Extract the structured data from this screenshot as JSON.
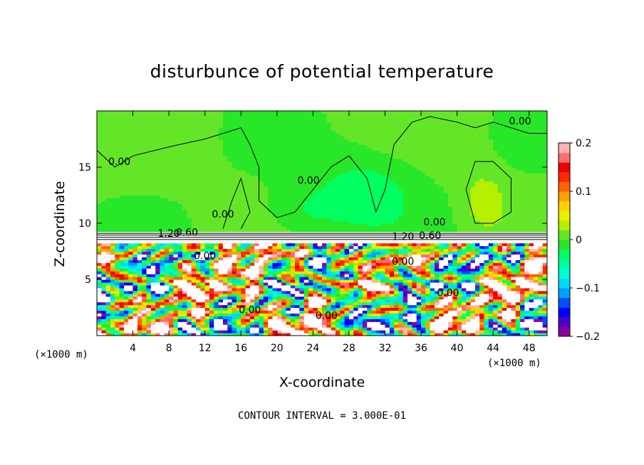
{
  "chart_data": {
    "type": "heatmap",
    "title": "disturbunce of potential temperature",
    "xlabel": "X-coordinate",
    "ylabel": "Z-coordinate",
    "x_unit": "(×1000 m)",
    "footer": "CONTOUR INTERVAL = 3.000E-01",
    "xlim": [
      0,
      50
    ],
    "ylim": [
      0,
      20
    ],
    "x_ticks": [
      4,
      8,
      12,
      16,
      20,
      24,
      28,
      32,
      36,
      40,
      44,
      48
    ],
    "y_ticks": [
      5,
      10,
      15
    ],
    "colorbar": {
      "range": [
        -0.2,
        0.2
      ],
      "ticks": [
        0.2,
        0.1,
        0,
        -0.1,
        -0.2
      ],
      "tick_labels": [
        "0.2",
        "0.1",
        "0",
        "−0.1",
        "−0.2"
      ],
      "colors": [
        "#8b00a0",
        "#4b00c8",
        "#0000ff",
        "#0050ff",
        "#00a0ff",
        "#00d8ff",
        "#00ffd0",
        "#00ffa0",
        "#00ff60",
        "#28e628",
        "#64e628",
        "#b4f000",
        "#e6f000",
        "#ffd200",
        "#ffa000",
        "#ff6400",
        "#ff2800",
        "#f00000",
        "#ff6e6e",
        "#ffb4b4"
      ]
    },
    "contour_labels": [
      "0.00",
      "0.00",
      "0.00",
      "0.00",
      "0.00",
      "0.00",
      "1.20",
      "0.60",
      "1.20",
      "0.60",
      "0.00",
      "0.00",
      "0.00",
      "0.00"
    ],
    "upper_layer_mean_value": 0.0,
    "inversion_layer_height": 8.6
  }
}
